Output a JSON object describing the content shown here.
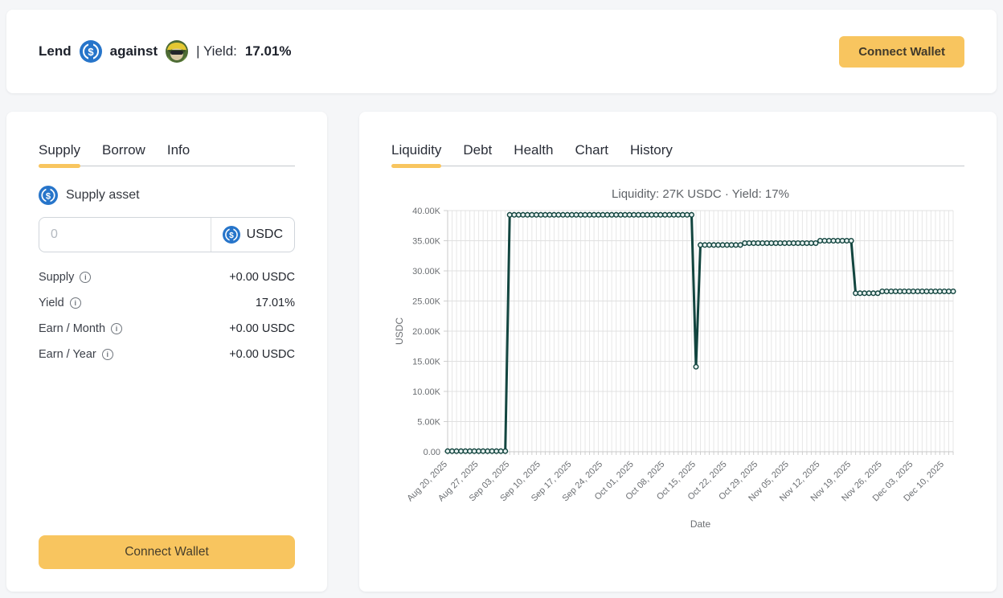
{
  "header": {
    "lend_label": "Lend",
    "against_label": "against",
    "yield_label": "| Yield:",
    "yield_value": "17.01%",
    "connect_wallet": "Connect Wallet"
  },
  "supply_panel": {
    "tabs": [
      {
        "label": "Supply",
        "active": true
      },
      {
        "label": "Borrow",
        "active": false
      },
      {
        "label": "Info",
        "active": false
      }
    ],
    "supply_asset_label": "Supply asset",
    "amount_input": {
      "value": "",
      "placeholder": "0"
    },
    "asset_symbol": "USDC",
    "stats": [
      {
        "label": "Supply",
        "value": "+0.00 USDC"
      },
      {
        "label": "Yield",
        "value": "17.01%"
      },
      {
        "label": "Earn / Month",
        "value": "+0.00 USDC"
      },
      {
        "label": "Earn / Year",
        "value": "+0.00 USDC"
      }
    ],
    "connect_wallet": "Connect Wallet"
  },
  "chart_panel": {
    "tabs": [
      {
        "label": "Liquidity",
        "active": true
      },
      {
        "label": "Debt",
        "active": false
      },
      {
        "label": "Health",
        "active": false
      },
      {
        "label": "Chart",
        "active": false
      },
      {
        "label": "History",
        "active": false
      }
    ]
  },
  "chart_data": {
    "type": "line",
    "title": "Liquidity: 27K USDC · Yield: 17%",
    "xlabel": "Date",
    "ylabel": "USDC",
    "ylim": [
      0,
      40000
    ],
    "grid": true,
    "start_date": "2025-08-20",
    "end_date": "2025-12-12",
    "xtick_interval_days": 7,
    "xtick_labels": [
      "Aug 20, 2025",
      "Aug 27, 2025",
      "Sep 03, 2025",
      "Sep 10, 2025",
      "Sep 17, 2025",
      "Sep 24, 2025",
      "Oct 01, 2025",
      "Oct 08, 2025",
      "Oct 15, 2025",
      "Oct 22, 2025",
      "Oct 29, 2025",
      "Nov 05, 2025",
      "Nov 12, 2025",
      "Nov 19, 2025",
      "Nov 26, 2025",
      "Dec 03, 2025",
      "Dec 10, 2025"
    ],
    "ytick_labels": [
      "0.00",
      "5.00K",
      "10.00K",
      "15.00K",
      "20.00K",
      "25.00K",
      "30.00K",
      "35.00K",
      "40.00K"
    ],
    "series_name": "Liquidity (USDC)",
    "segments": [
      {
        "start": "2025-08-20",
        "end": "2025-09-02",
        "value": 100
      },
      {
        "start": "2025-09-03",
        "end": "2025-10-14",
        "value": 39300
      },
      {
        "start": "2025-10-15",
        "end": "2025-10-15",
        "value": 14100
      },
      {
        "start": "2025-10-16",
        "end": "2025-10-25",
        "value": 34300
      },
      {
        "start": "2025-10-26",
        "end": "2025-11-11",
        "value": 34600
      },
      {
        "start": "2025-11-12",
        "end": "2025-11-19",
        "value": 35000
      },
      {
        "start": "2025-11-20",
        "end": "2025-11-25",
        "value": 26300
      },
      {
        "start": "2025-11-26",
        "end": "2025-12-12",
        "value": 26600
      }
    ],
    "line_color": "#12453f",
    "marker_fill": "#e9f2f1",
    "grid_color": "#e7e7e7",
    "tick_text_color": "#6b6e72"
  },
  "colors": {
    "accent_yellow": "#f8c55f",
    "usdc_blue": "#2775ca",
    "line_teal": "#12453f",
    "page_bg": "#f5f6f8"
  }
}
